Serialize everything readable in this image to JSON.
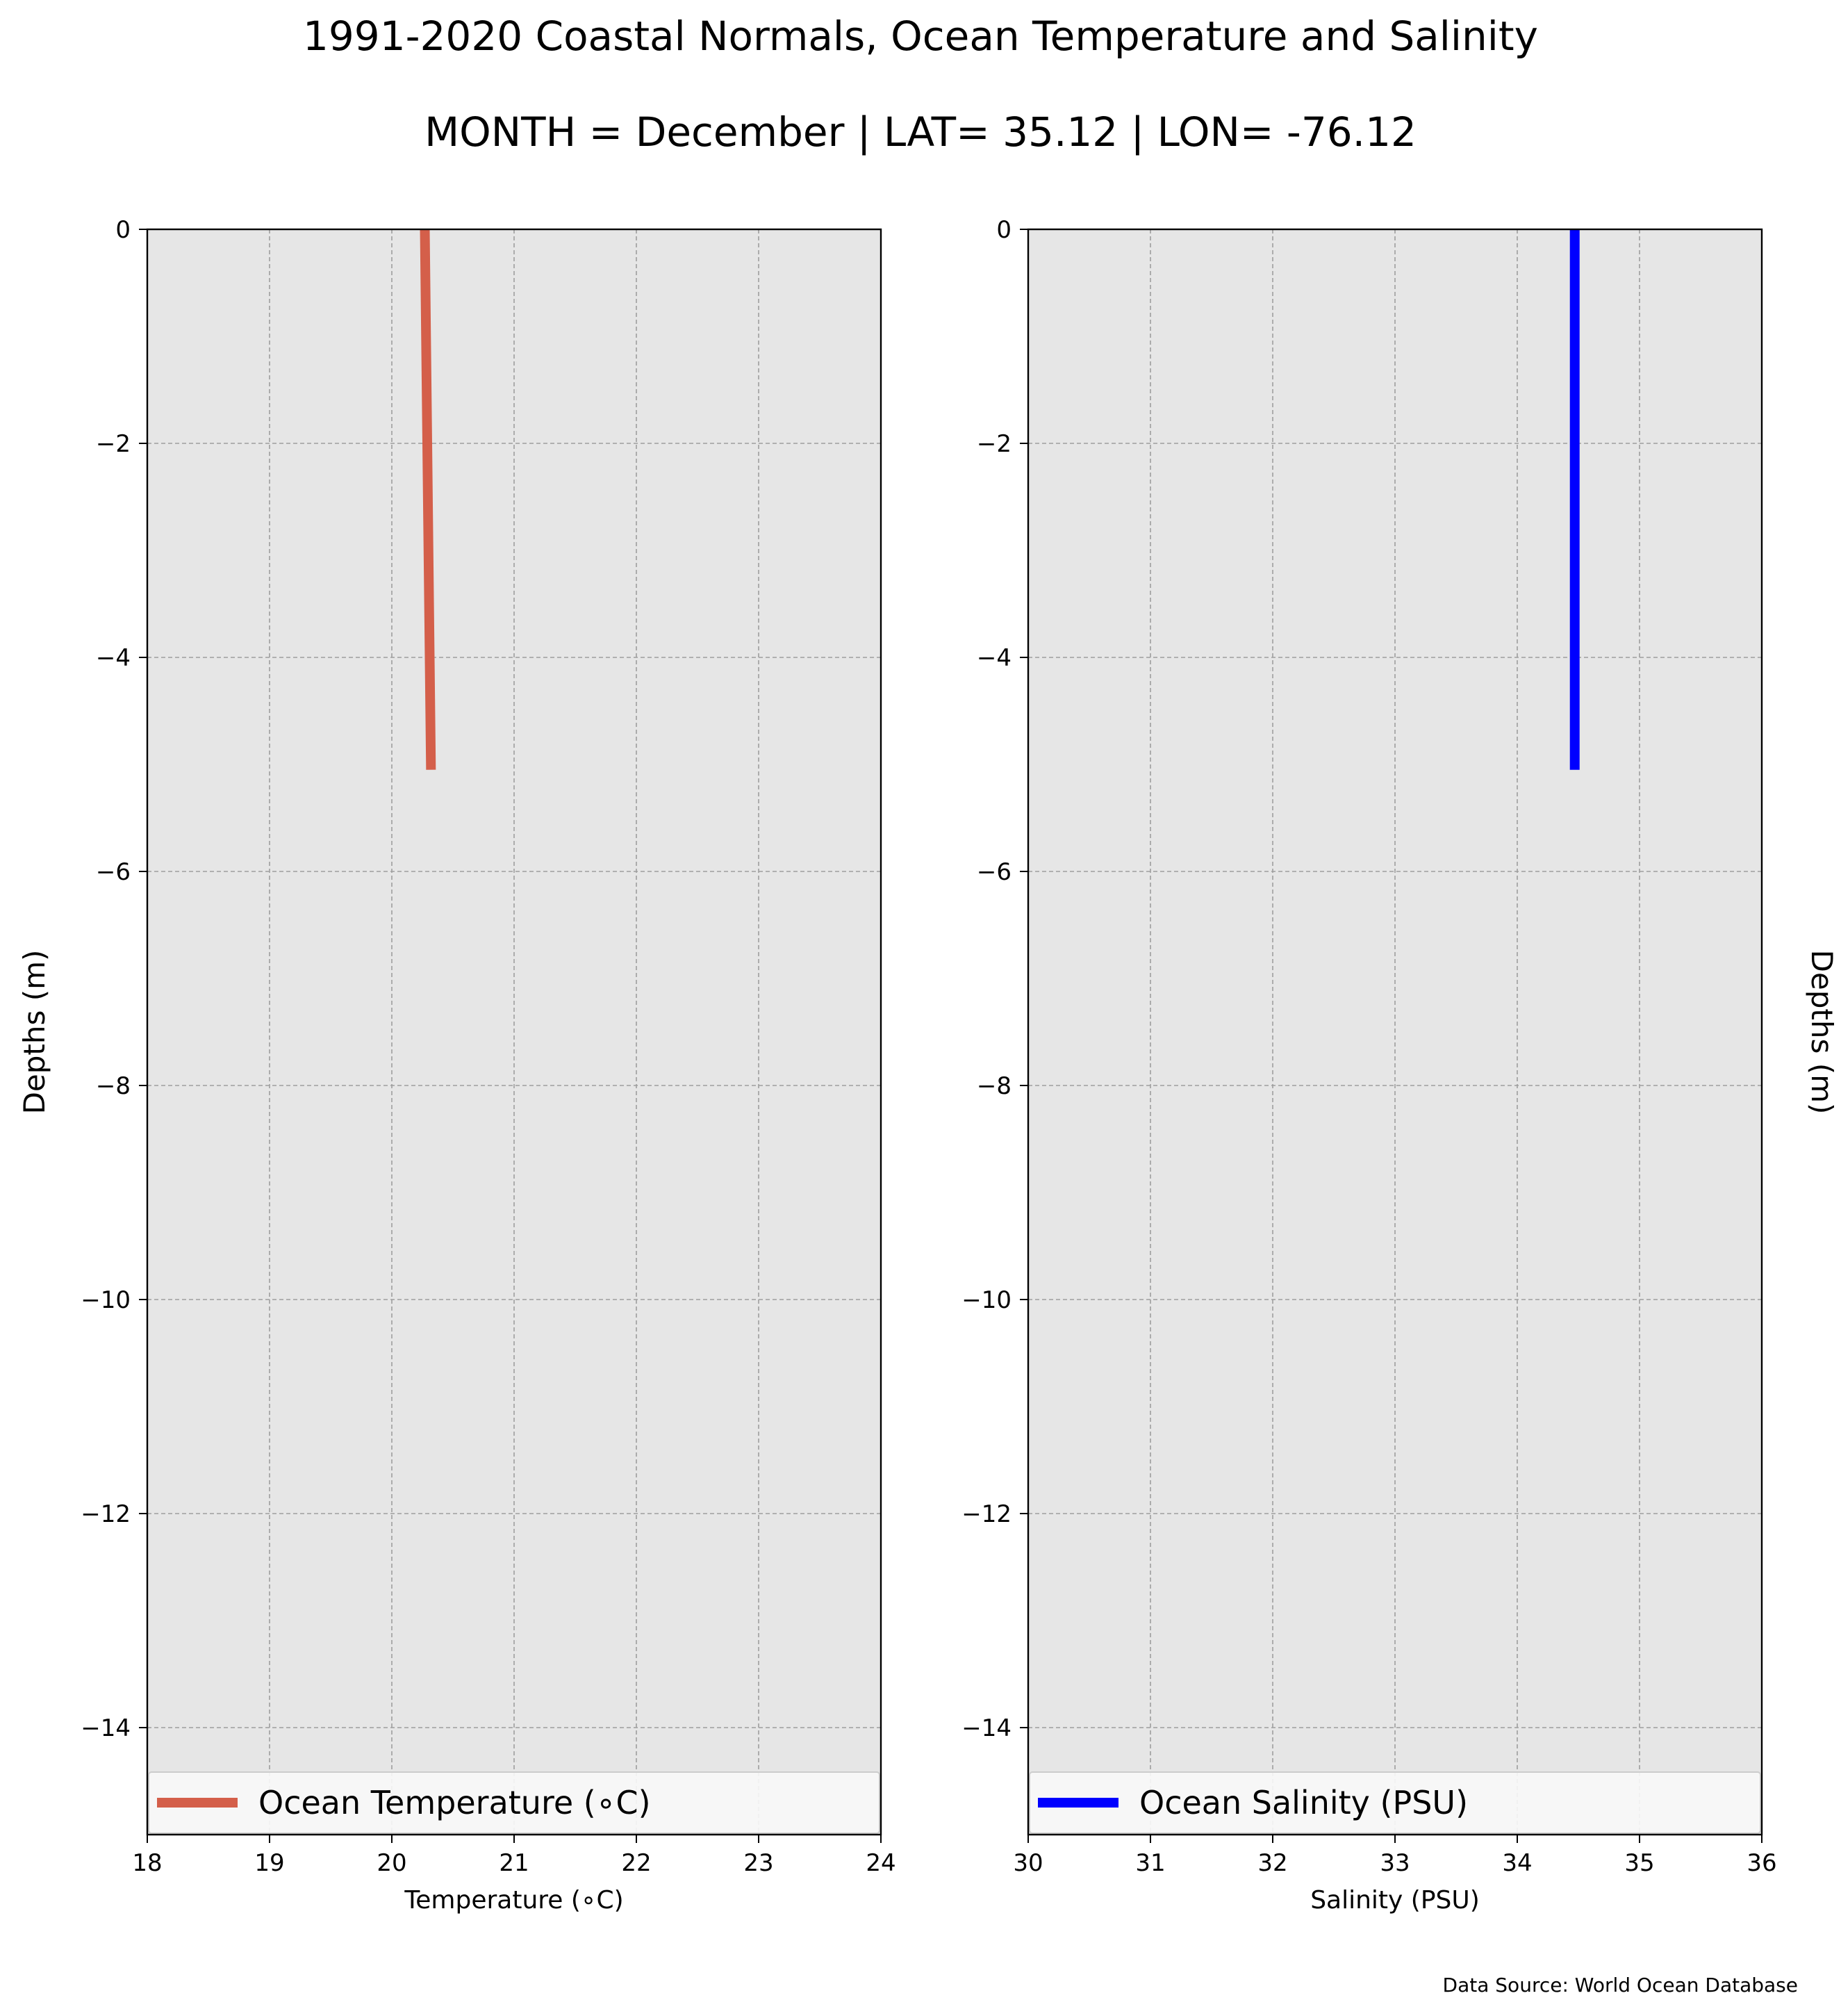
{
  "figure": {
    "title": "1991-2020 Coastal Normals, Ocean Temperature and Salinity",
    "subtitle": "MONTH = December | LAT= 35.12 | LON= -76.12",
    "source": "Data Source: World Ocean Database"
  },
  "colors": {
    "plot_background": "#e6e6e6",
    "grid": "#9e9e9e",
    "temperature_line": "#d45f4a",
    "salinity_line": "#0000ff"
  },
  "chart_data": [
    {
      "type": "line",
      "xlabel": "Temperature ($^\\circ$C)",
      "xlabel_display": "Temperature (∘C)",
      "ylabel": "Depths (m)",
      "xlim": [
        18,
        24
      ],
      "ylim": [
        -15,
        0
      ],
      "xticks": [
        18,
        19,
        20,
        21,
        22,
        23,
        24
      ],
      "xtick_labels": [
        "18",
        "19",
        "20",
        "21",
        "22",
        "23",
        "24"
      ],
      "yticks": [
        0,
        -2,
        -4,
        -6,
        -8,
        -10,
        -12,
        -14
      ],
      "ytick_labels": [
        "0",
        "−2",
        "−4",
        "−6",
        "−8",
        "−10",
        "−12",
        "−14"
      ],
      "grid": true,
      "legend_position": "lower center",
      "series": [
        {
          "name": "Ocean Temperature (∘C)",
          "color": "#d45f4a",
          "x": [
            20.27,
            20.32
          ],
          "y": [
            0,
            -5.05
          ]
        }
      ]
    },
    {
      "type": "line",
      "xlabel": "Salinity (PSU)",
      "xlabel_display": "Salinity (PSU)",
      "ylabel": "Depths (m)",
      "ylabel_side": "right",
      "xlim": [
        30,
        36
      ],
      "ylim": [
        -15,
        0
      ],
      "xticks": [
        30,
        31,
        32,
        33,
        34,
        35,
        36
      ],
      "xtick_labels": [
        "30",
        "31",
        "32",
        "33",
        "34",
        "35",
        "36"
      ],
      "yticks": [
        0,
        -2,
        -4,
        -6,
        -8,
        -10,
        -12,
        -14
      ],
      "ytick_labels": [
        "0",
        "−2",
        "−4",
        "−6",
        "−8",
        "−10",
        "−12",
        "−14"
      ],
      "grid": true,
      "legend_position": "lower center",
      "series": [
        {
          "name": "Ocean Salinity (PSU)",
          "color": "#0000ff",
          "x": [
            34.47,
            34.47
          ],
          "y": [
            0,
            -5.05
          ]
        }
      ]
    }
  ]
}
